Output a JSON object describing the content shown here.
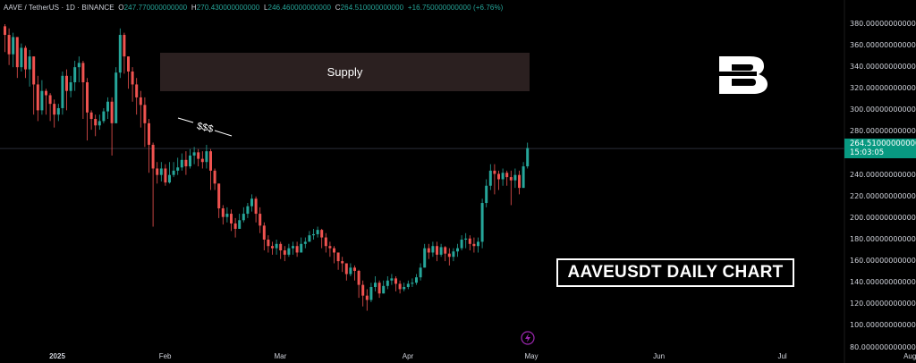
{
  "header": {
    "symbol": "AAVE / TetherUS · 1D · BINANCE",
    "open_label": "O",
    "open": "247.770000000000",
    "high_label": "H",
    "high": "270.430000000000",
    "low_label": "L",
    "low": "246.460000000000",
    "close_label": "C",
    "close": "264.510000000000",
    "change": "+16.750000000000 (+6.76%)"
  },
  "price_badge": {
    "price": "264.510000000000",
    "countdown": "15:03:05"
  },
  "annotations": {
    "supply_label": "Supply",
    "liquidity_label": "$$$",
    "title": "AAVEUSDT DAILY CHART"
  },
  "colors": {
    "up": "#26a69a",
    "down": "#ef5350",
    "supply": "#2b2020",
    "badge": "#089981"
  },
  "icons": {
    "logo": "brand-b-logo",
    "bolt": "lightning-icon"
  },
  "chart_data": {
    "type": "candlestick",
    "ylim": [
      80,
      390
    ],
    "yticks": [
      "380.000000000000",
      "360.000000000000",
      "340.000000000000",
      "320.000000000000",
      "300.000000000000",
      "280.000000000000",
      "260.000000000000",
      "240.000000000000",
      "220.000000000000",
      "200.000000000000",
      "180.000000000000",
      "160.000000000000",
      "140.000000000000",
      "120.000000000000",
      "100.000000000000",
      "80.000000000000"
    ],
    "ytick_values": [
      380,
      360,
      340,
      320,
      300,
      280,
      260,
      240,
      220,
      200,
      180,
      160,
      140,
      120,
      100,
      80
    ],
    "xticks": [
      {
        "label": "2025",
        "day": 0,
        "bold": true
      },
      {
        "label": "Feb",
        "day": 31
      },
      {
        "label": "Mar",
        "day": 59
      },
      {
        "label": "Apr",
        "day": 90
      },
      {
        "label": "May",
        "day": 120
      },
      {
        "label": "Jun",
        "day": 151
      },
      {
        "label": "Jul",
        "day": 181
      },
      {
        "label": "Aug",
        "day": 212
      }
    ],
    "supply_zone": [
      314,
      348
    ],
    "last_price": 264.51,
    "closes": [
      370,
      352,
      368,
      340,
      358,
      338,
      350,
      324,
      300,
      318,
      314,
      306,
      296,
      302,
      332,
      318,
      326,
      340,
      344,
      326,
      298,
      292,
      286,
      290,
      299,
      308,
      288,
      335,
      370,
      350,
      336,
      324,
      312,
      305,
      288,
      268,
      246,
      240,
      246,
      233,
      240,
      244,
      247,
      254,
      248,
      258,
      261,
      255,
      252,
      262,
      244,
      232,
      209,
      201,
      204,
      195,
      190,
      198,
      204,
      211,
      218,
      204,
      193,
      180,
      174,
      172,
      176,
      170,
      166,
      172,
      174,
      168,
      176,
      178,
      184,
      185,
      189,
      182,
      174,
      172,
      168,
      160,
      158,
      148,
      154,
      151,
      138,
      128,
      124,
      136,
      140,
      130,
      137,
      142,
      144,
      139,
      134,
      136,
      139,
      140,
      145,
      154,
      172,
      168,
      174,
      166,
      173,
      167,
      164,
      169,
      172,
      180,
      181,
      176,
      174,
      178,
      214,
      230,
      244,
      241,
      236,
      242,
      238,
      235,
      240,
      228,
      248,
      265
    ],
    "highs": [
      380,
      376,
      372,
      364,
      362,
      360,
      356,
      348,
      332,
      328,
      320,
      316,
      310,
      306,
      336,
      338,
      332,
      346,
      350,
      346,
      330,
      300,
      296,
      296,
      302,
      312,
      312,
      340,
      376,
      372,
      350,
      340,
      330,
      318,
      312,
      292,
      270,
      252,
      252,
      250,
      252,
      252,
      256,
      260,
      262,
      264,
      266,
      264,
      262,
      268,
      264,
      246,
      230,
      212,
      210,
      208,
      200,
      204,
      210,
      214,
      222,
      220,
      210,
      196,
      184,
      178,
      180,
      178,
      174,
      176,
      178,
      178,
      182,
      182,
      188,
      190,
      192,
      190,
      186,
      178,
      174,
      168,
      164,
      158,
      158,
      156,
      152,
      142,
      134,
      140,
      146,
      142,
      142,
      146,
      148,
      146,
      142,
      140,
      142,
      144,
      148,
      158,
      176,
      176,
      178,
      178,
      176,
      174,
      172,
      172,
      176,
      184,
      186,
      184,
      182,
      182,
      218,
      236,
      250,
      250,
      244,
      246,
      244,
      244,
      246,
      244,
      252,
      270
    ],
    "lows": [
      354,
      342,
      340,
      330,
      336,
      330,
      322,
      296,
      290,
      296,
      296,
      290,
      284,
      290,
      296,
      300,
      312,
      318,
      326,
      292,
      272,
      282,
      276,
      282,
      288,
      292,
      258,
      290,
      330,
      334,
      320,
      308,
      296,
      284,
      266,
      242,
      192,
      232,
      234,
      230,
      232,
      238,
      240,
      244,
      240,
      246,
      250,
      248,
      246,
      246,
      226,
      226,
      200,
      194,
      196,
      188,
      182,
      190,
      196,
      200,
      206,
      196,
      186,
      170,
      168,
      166,
      166,
      162,
      160,
      164,
      166,
      164,
      168,
      172,
      178,
      180,
      182,
      172,
      168,
      164,
      158,
      152,
      150,
      142,
      146,
      142,
      126,
      118,
      114,
      122,
      132,
      126,
      130,
      134,
      138,
      132,
      130,
      132,
      134,
      136,
      138,
      142,
      154,
      162,
      164,
      160,
      164,
      160,
      156,
      160,
      164,
      170,
      172,
      170,
      168,
      168,
      172,
      210,
      226,
      222,
      226,
      230,
      230,
      212,
      228,
      222,
      230,
      246
    ]
  }
}
